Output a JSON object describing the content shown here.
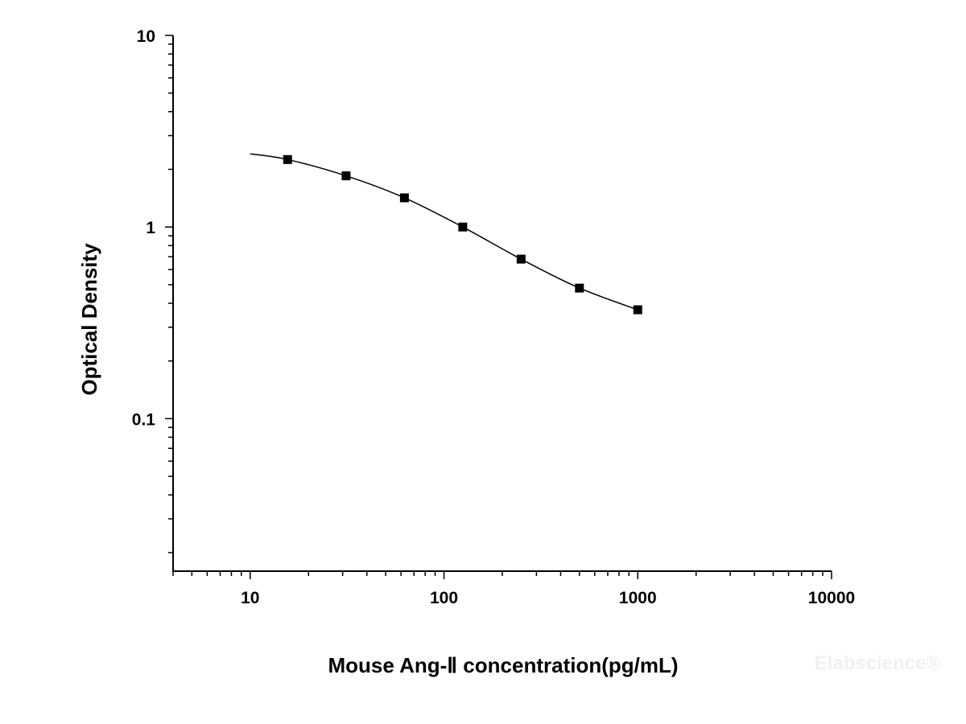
{
  "chart_data": {
    "type": "scatter",
    "xlabel": "Mouse Ang-Ⅱ concentration(pg/mL)",
    "ylabel": "Optical Density",
    "xscale": "log",
    "yscale": "log",
    "xlim": [
      4,
      10000
    ],
    "ylim": [
      0.016,
      10
    ],
    "x_tick_labels": [
      "10",
      "100",
      "1000",
      "10000"
    ],
    "y_tick_labels": [
      "10",
      "1",
      "0.1"
    ],
    "grid": false,
    "legend": "none",
    "marker": "square",
    "points": {
      "x": [
        15.6,
        31.25,
        62.5,
        125,
        250,
        500,
        1000
      ],
      "y": [
        2.25,
        1.85,
        1.42,
        1.0,
        0.68,
        0.48,
        0.37
      ]
    },
    "fit_curve": {
      "type": "four-parameter logistic",
      "x_range": [
        10,
        1000
      ]
    }
  },
  "watermark": "Elabscience®"
}
